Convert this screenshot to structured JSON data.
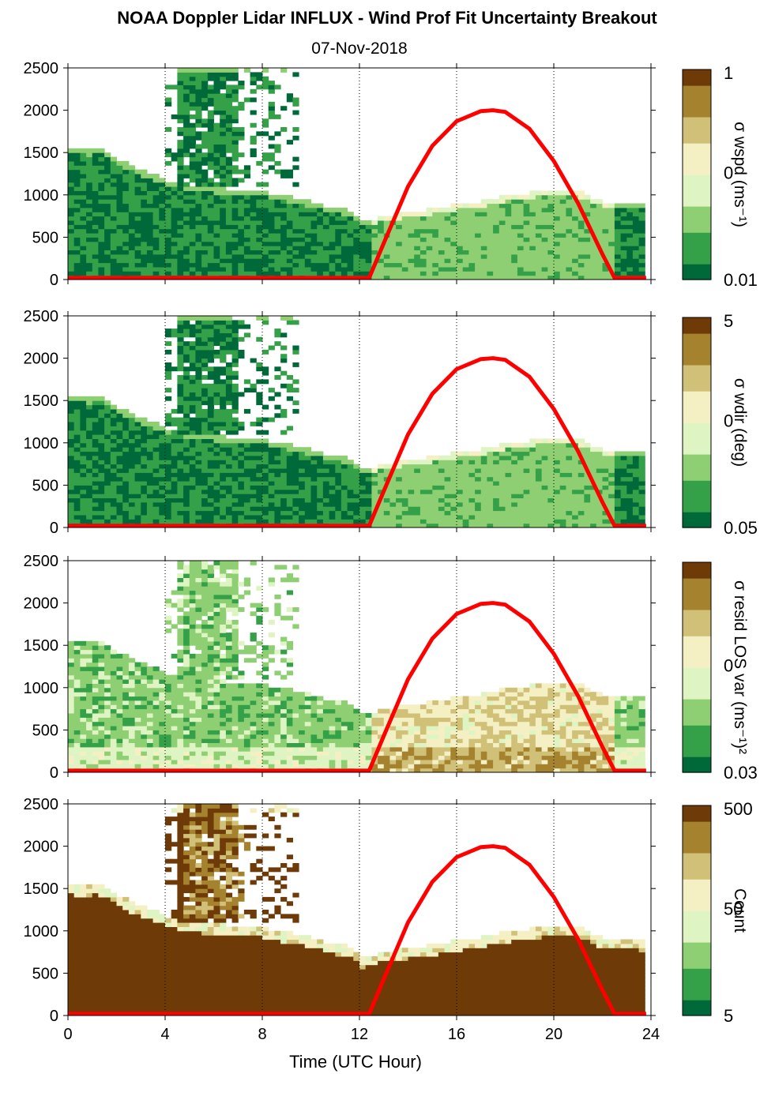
{
  "title": "NOAA Doppler Lidar INFLUX - Wind Prof Fit Uncertainty Breakout",
  "subtitle": "07-Nov-2018",
  "colors": {
    "sun_curve": "#ff0000",
    "colormap": [
      "#00693a",
      "#34a048",
      "#8fcf73",
      "#def4c2",
      "#f4f0c4",
      "#d1c178",
      "#a5832e",
      "#6e3a07"
    ]
  },
  "chart_data": [
    {
      "type": "heatmap",
      "panel": "wspd",
      "colorbar_label": "σ wspd (ms⁻¹)",
      "colorbar_ticks": [
        "1",
        "0",
        "0.01"
      ],
      "xlim": [
        0,
        24
      ],
      "ylim": [
        0,
        2500
      ],
      "x_ticks": [
        0,
        4,
        8,
        12,
        16,
        20,
        24
      ],
      "y_ticks": [
        "0",
        "500",
        "1000",
        "1500",
        "2000",
        "2500"
      ],
      "grid": "vertical dotted at 4-hour ticks"
    },
    {
      "type": "heatmap",
      "panel": "wdir",
      "colorbar_label": "σ wdir (deg)",
      "colorbar_ticks": [
        "5",
        "0",
        "0.05"
      ],
      "xlim": [
        0,
        24
      ],
      "ylim": [
        0,
        2500
      ],
      "x_ticks": [
        0,
        4,
        8,
        12,
        16,
        20,
        24
      ],
      "y_ticks": [
        "0",
        "500",
        "1000",
        "1500",
        "2000",
        "2500"
      ],
      "grid": "vertical dotted at 4-hour ticks"
    },
    {
      "type": "heatmap",
      "panel": "resid",
      "colorbar_label": "σ resid LOS var (ms⁻¹)²",
      "colorbar_ticks": [
        "",
        "0",
        "0.03"
      ],
      "xlim": [
        0,
        24
      ],
      "ylim": [
        0,
        2500
      ],
      "x_ticks": [
        0,
        4,
        8,
        12,
        16,
        20,
        24
      ],
      "y_ticks": [
        "0",
        "500",
        "1000",
        "1500",
        "2000",
        "2500"
      ],
      "grid": "vertical dotted at 4-hour ticks"
    },
    {
      "type": "heatmap",
      "panel": "count",
      "colorbar_label": "Count",
      "colorbar_ticks": [
        "500",
        "50",
        "5"
      ],
      "xlim": [
        0,
        24
      ],
      "ylim": [
        0,
        2500
      ],
      "x_ticks": [
        0,
        4,
        8,
        12,
        16,
        20,
        24
      ],
      "y_ticks": [
        "0",
        "500",
        "1000",
        "1500",
        "2000",
        "2500"
      ],
      "xlabel": "Time (UTC Hour)",
      "grid": "vertical dotted at 4-hour ticks"
    }
  ],
  "sun_elevation_curve": {
    "x": [
      0,
      12.4,
      13,
      14,
      15,
      16,
      17,
      17.5,
      18,
      19,
      20,
      21,
      22,
      22.5,
      23.8
    ],
    "y": [
      20,
      20,
      430,
      1100,
      1580,
      1870,
      1990,
      2000,
      1980,
      1780,
      1400,
      900,
      300,
      20,
      20
    ]
  },
  "data_extent": {
    "hours": [
      0,
      1,
      1.2,
      2,
      3,
      4,
      4.5,
      5,
      6,
      7,
      8,
      9,
      10,
      11,
      11.8,
      12,
      13,
      14,
      15,
      16,
      17,
      18,
      19,
      20,
      21,
      22,
      23,
      23.8
    ],
    "top_m": [
      1530,
      1500,
      1550,
      1400,
      1270,
      1160,
      1120,
      1080,
      1060,
      1040,
      1020,
      960,
      900,
      820,
      780,
      650,
      730,
      770,
      810,
      860,
      900,
      960,
      1000,
      1040,
      1020,
      900,
      880,
      860
    ]
  }
}
